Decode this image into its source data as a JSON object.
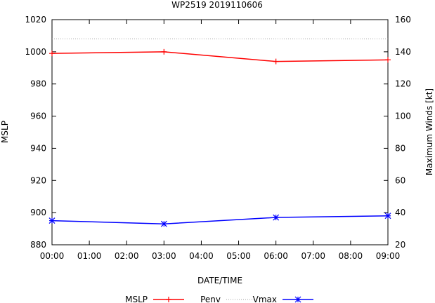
{
  "chart_data": {
    "type": "line",
    "title": "WP2519 2019110606",
    "xlabel": "DATE/TIME",
    "ylabel_left": "MSLP",
    "ylabel_right": "Maximum Winds [kt]",
    "x_categories": [
      "00:00",
      "01:00",
      "02:00",
      "03:00",
      "04:00",
      "05:00",
      "06:00",
      "07:00",
      "08:00",
      "09:00"
    ],
    "y_left": {
      "min": 880,
      "max": 1020,
      "ticks": [
        880,
        900,
        920,
        940,
        960,
        980,
        1000,
        1020
      ]
    },
    "y_right": {
      "min": 20,
      "max": 160,
      "ticks": [
        20,
        40,
        60,
        80,
        100,
        120,
        140,
        160
      ]
    },
    "grid": false,
    "legend_position": "bottom",
    "series": [
      {
        "name": "MSLP",
        "axis": "left",
        "color": "#ff0000",
        "marker": "plus",
        "dash": "solid",
        "x": [
          0,
          3,
          6,
          9
        ],
        "values": [
          999,
          1000,
          994,
          995
        ]
      },
      {
        "name": "Penv",
        "axis": "left",
        "color": "#a0a0a0",
        "marker": "none",
        "dash": "dotted",
        "x": [
          0,
          3,
          6,
          9
        ],
        "values": [
          1008,
          1008,
          1008,
          1008
        ]
      },
      {
        "name": "Vmax",
        "axis": "right",
        "color": "#0000ff",
        "marker": "star",
        "dash": "solid",
        "x": [
          0,
          3,
          6,
          9
        ],
        "values": [
          35,
          33,
          37,
          38
        ]
      }
    ]
  }
}
